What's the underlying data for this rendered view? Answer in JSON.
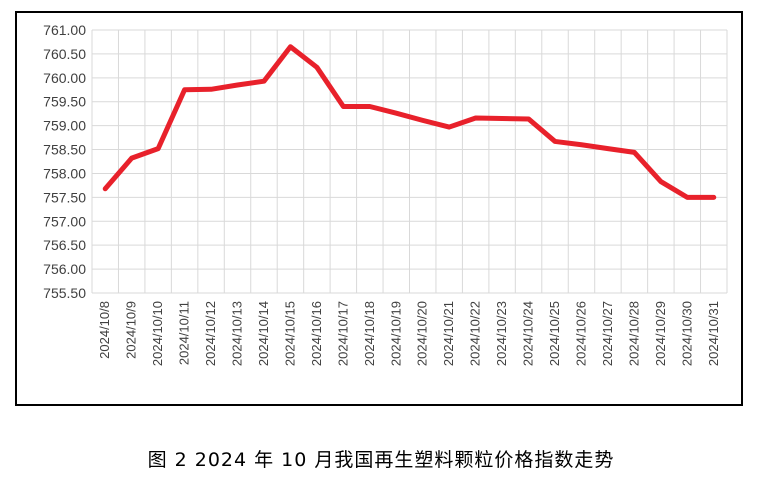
{
  "chart_data": {
    "type": "line",
    "title": "",
    "xlabel": "",
    "ylabel": "",
    "categories": [
      "2024/10/8",
      "2024/10/9",
      "2024/10/10",
      "2024/10/11",
      "2024/10/12",
      "2024/10/13",
      "2024/10/14",
      "2024/10/15",
      "2024/10/16",
      "2024/10/17",
      "2024/10/18",
      "2024/10/19",
      "2024/10/20",
      "2024/10/21",
      "2024/10/22",
      "2024/10/23",
      "2024/10/24",
      "2024/10/25",
      "2024/10/26",
      "2024/10/27",
      "2024/10/28",
      "2024/10/29",
      "2024/10/30",
      "2024/10/31"
    ],
    "series": [
      {
        "color": "#e8212b",
        "values": [
          757.68,
          758.32,
          758.52,
          759.75,
          759.76,
          759.85,
          759.93,
          760.65,
          760.22,
          759.4,
          759.4,
          759.26,
          759.11,
          758.97,
          759.16,
          759.15,
          759.14,
          758.67,
          758.6,
          758.52,
          758.44,
          757.83,
          757.5,
          757.5
        ]
      }
    ],
    "ylim": [
      755.5,
      761.0
    ],
    "yticks": [
      "761.00",
      "760.50",
      "760.00",
      "759.50",
      "759.00",
      "758.50",
      "758.00",
      "757.50",
      "757.00",
      "756.50",
      "756.00",
      "755.50"
    ],
    "grid": true,
    "legend": "none"
  },
  "caption": "图 2  2024 年 10 月我国再生塑料颗粒价格指数走势"
}
